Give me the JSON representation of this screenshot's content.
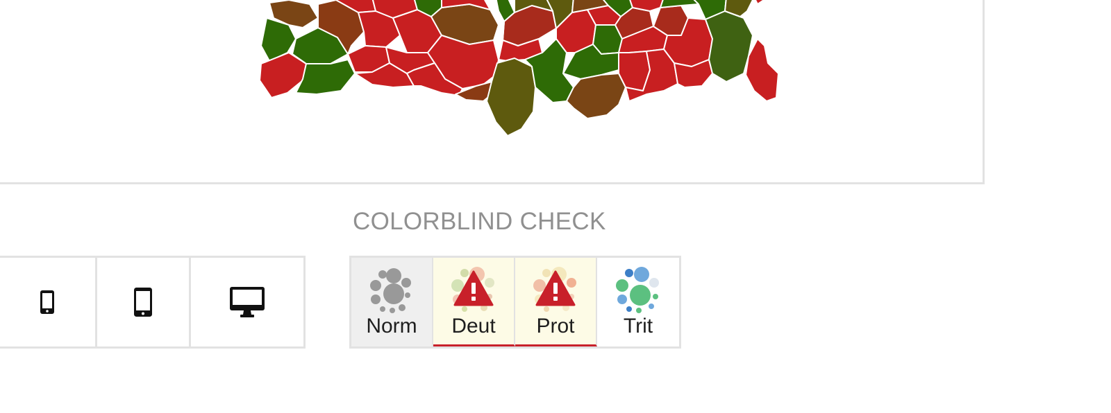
{
  "colorblind_check": {
    "title": "COLORBLIND CHECK",
    "modes": [
      {
        "label": "Norm",
        "state": "selected"
      },
      {
        "label": "Deut",
        "state": "warning"
      },
      {
        "label": "Prot",
        "state": "warning"
      },
      {
        "label": "Trit",
        "state": "ok"
      }
    ]
  },
  "device_preview": {
    "buttons": [
      {
        "icon": "phone-small-icon"
      },
      {
        "icon": "phone-large-icon"
      },
      {
        "icon": "desktop-monitor-icon"
      }
    ]
  },
  "colors": {
    "map_red": "#c81f21",
    "map_green": "#2e6b06",
    "map_brown": "#7a4515",
    "warning_red": "#c8202a",
    "warning_bg": "#fdfbe6",
    "border": "#e2e2e2",
    "title_gray": "#909090"
  }
}
